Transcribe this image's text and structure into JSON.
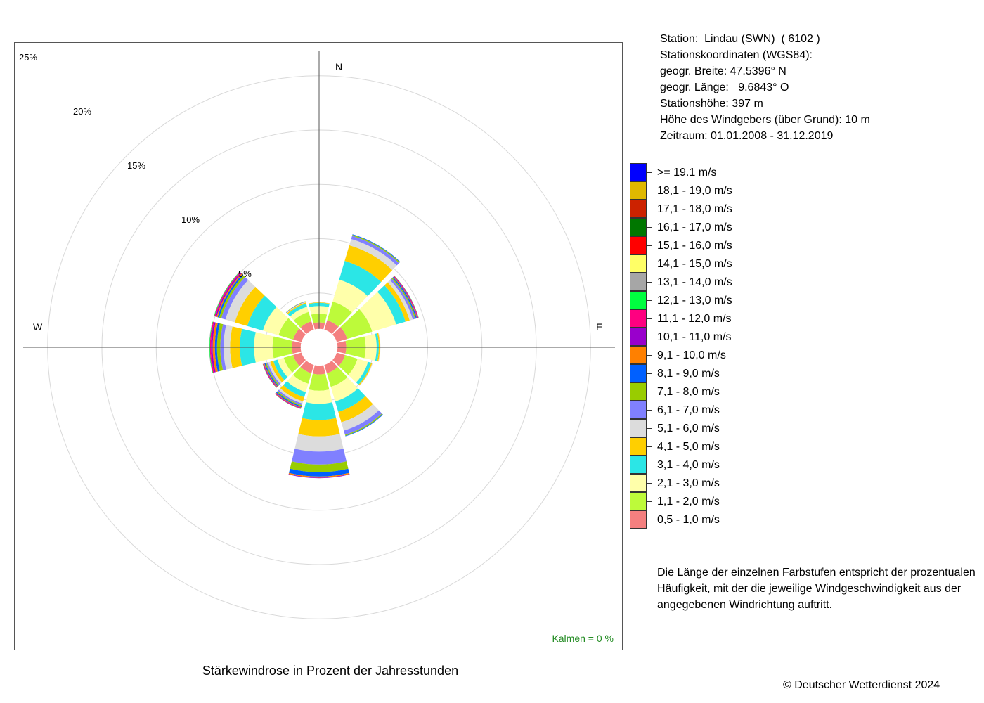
{
  "station_info": [
    "Station:  Lindau (SWN)  ( 6102 )",
    "Stationskoordinaten (WGS84):",
    "geogr. Breite: 47.5396° N",
    "geogr. Länge:   9.6843° O",
    "Stationshöhe: 397 m",
    "Höhe des Windgebers (über Grund): 10 m",
    "Zeitraum: 01.01.2008 - 31.12.2019"
  ],
  "description": "Die Länge der einzelnen Farbstufen entspricht der prozentualen Häufigkeit, mit der die jeweilige Windgeschwindigkeit aus der angegebenen Windrichtung auftritt.",
  "copyright": "© Deutscher Wetterdienst  2024",
  "calm_label": "Kalmen  =  0 %",
  "chart_data": {
    "type": "wind-rose",
    "title": "Stärkewindrose in Prozent der Jahresstunden",
    "radial_unit": "%",
    "radial_max": 25,
    "rings": [
      5,
      10,
      15,
      20,
      25
    ],
    "ring_labels": [
      "5%",
      "10%",
      "15%",
      "20%",
      "25%"
    ],
    "direction_labels": {
      "N": "N",
      "E": "E",
      "W": "W"
    },
    "calm_percent": 0,
    "inner_radius_percent": 1.7,
    "sector_width_deg": 30,
    "classes": [
      {
        "label": "0,5 - 1,0 m/s",
        "color": "#f47f7f"
      },
      {
        "label": "1,1 - 2,0 m/s",
        "color": "#bdfa3a"
      },
      {
        "label": "2,1 - 3,0 m/s",
        "color": "#ffffaa"
      },
      {
        "label": "3,1 - 4,0 m/s",
        "color": "#2be6e6"
      },
      {
        "label": "4,1 - 5,0 m/s",
        "color": "#ffcf00"
      },
      {
        "label": "5,1 - 6,0 m/s",
        "color": "#dcdcdc"
      },
      {
        "label": "6,1 - 7,0 m/s",
        "color": "#8080ff"
      },
      {
        "label": "7,1 - 8,0 m/s",
        "color": "#99cc00"
      },
      {
        "label": "8,1 - 9,0 m/s",
        "color": "#0060ff"
      },
      {
        "label": "9,1 - 10,0 m/s",
        "color": "#ff8000"
      },
      {
        "label": "10,1 - 11,0 m/s",
        "color": "#9900cc"
      },
      {
        "label": "11,1 - 12,0 m/s",
        "color": "#ff0080"
      },
      {
        "label": "12,1 - 13,0 m/s",
        "color": "#00ff40"
      },
      {
        "label": "13,1 - 14,0 m/s",
        "color": "#a6a6a6"
      },
      {
        "label": "14,1 - 15,0 m/s",
        "color": "#ffff66"
      },
      {
        "label": "15,1 - 16,0 m/s",
        "color": "#ff0000"
      },
      {
        "label": "16,1 - 17,0 m/s",
        "color": "#007700"
      },
      {
        "label": "17,1 - 18,0 m/s",
        "color": "#cc2200"
      },
      {
        "label": "18,1 - 19,0 m/s",
        "color": "#e0b800"
      },
      {
        "label": ">= 19.1 m/s",
        "color": "#0000ff"
      }
    ],
    "sectors": [
      {
        "direction_deg": 0,
        "values": [
          0.6,
          0.8,
          0.7,
          0.3,
          0.05,
          0.02
        ]
      },
      {
        "direction_deg": 30,
        "values": [
          0.9,
          1.8,
          2.1,
          1.8,
          1.5,
          0.6,
          0.3,
          0.1,
          0.05
        ]
      },
      {
        "direction_deg": 60,
        "values": [
          1.0,
          2.4,
          2.3,
          0.9,
          0.4,
          0.3,
          0.2,
          0.1,
          0.1,
          0.05,
          0.05,
          0.05,
          0.02
        ]
      },
      {
        "direction_deg": 90,
        "values": [
          0.8,
          1.8,
          1.0,
          0.2,
          0.1,
          0.05
        ]
      },
      {
        "direction_deg": 120,
        "values": [
          0.8,
          1.2,
          1.0,
          0.3,
          0.1,
          0.05
        ]
      },
      {
        "direction_deg": 150,
        "values": [
          0.8,
          1.3,
          1.4,
          1.0,
          1.0,
          0.8,
          0.4,
          0.1,
          0.05
        ]
      },
      {
        "direction_deg": 180,
        "values": [
          0.8,
          1.5,
          1.2,
          1.5,
          1.5,
          1.4,
          1.2,
          0.7,
          0.4,
          0.1,
          0.05
        ]
      },
      {
        "direction_deg": 210,
        "values": [
          0.8,
          1.0,
          0.8,
          0.5,
          0.4,
          0.2,
          0.15,
          0.1,
          0.1,
          0.05,
          0.05,
          0.05,
          0.02
        ]
      },
      {
        "direction_deg": 240,
        "values": [
          0.8,
          0.9,
          0.6,
          0.4,
          0.3,
          0.2,
          0.15,
          0.1,
          0.1,
          0.05,
          0.05,
          0.05,
          0.02
        ]
      },
      {
        "direction_deg": 270,
        "values": [
          0.8,
          1.8,
          1.7,
          1.3,
          0.9,
          0.6,
          0.3,
          0.3,
          0.2,
          0.2,
          0.15,
          0.1,
          0.05,
          0.02
        ]
      },
      {
        "direction_deg": 300,
        "values": [
          0.8,
          1.4,
          1.5,
          1.5,
          1.2,
          0.9,
          0.4,
          0.2,
          0.15,
          0.1,
          0.1,
          0.1,
          0.05,
          0.02
        ]
      },
      {
        "direction_deg": 330,
        "values": [
          0.8,
          0.9,
          0.5,
          0.3,
          0.1,
          0.05,
          0.05,
          0.03
        ]
      }
    ]
  }
}
